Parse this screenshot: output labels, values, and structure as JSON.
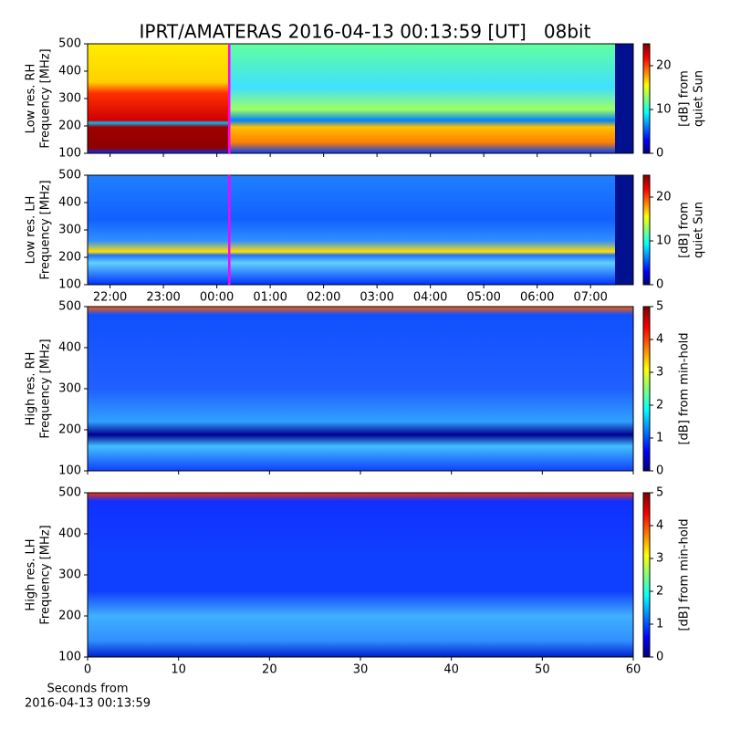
{
  "title": "IPRT/AMATERAS 2016-04-13 00:13:59 [UT]   08bit",
  "chart_data": [
    {
      "type": "heatmap",
      "ylabel": [
        "Low res. RH",
        "Frequency [MHz]"
      ],
      "ylim": [
        100,
        500
      ],
      "yticks": [
        100,
        200,
        300,
        400,
        500
      ],
      "xlim": [
        -2.42,
        7.8
      ],
      "xticks": [
        -2,
        -1,
        0,
        1,
        2,
        3,
        4,
        5,
        6,
        7
      ],
      "xticklabels": false,
      "marker_x": 0.233,
      "marker_color": "#ff00ff",
      "colorbar": {
        "label": [
          "[dB] from",
          "quiet Sun"
        ],
        "lim": [
          0,
          25
        ],
        "ticks": [
          0,
          10,
          20
        ]
      }
    },
    {
      "type": "heatmap",
      "ylabel": [
        "Low res. LH",
        "Frequency [MHz]"
      ],
      "ylim": [
        100,
        500
      ],
      "yticks": [
        100,
        200,
        300,
        400,
        500
      ],
      "xlim": [
        -2.42,
        7.8
      ],
      "xticks": [
        {
          "value": -2,
          "label": "22:00"
        },
        {
          "value": -1,
          "label": "23:00"
        },
        {
          "value": 0,
          "label": "00:00"
        },
        {
          "value": 1,
          "label": "01:00"
        },
        {
          "value": 2,
          "label": "02:00"
        },
        {
          "value": 3,
          "label": "03:00"
        },
        {
          "value": 4,
          "label": "04:00"
        },
        {
          "value": 5,
          "label": "05:00"
        },
        {
          "value": 6,
          "label": "06:00"
        },
        {
          "value": 7,
          "label": "07:00"
        }
      ],
      "xticklabels": true,
      "marker_x": 0.233,
      "marker_color": "#ff00ff",
      "colorbar": {
        "label": [
          "[dB] from",
          "quiet Sun"
        ],
        "lim": [
          0,
          25
        ],
        "ticks": [
          0,
          10,
          20
        ]
      }
    },
    {
      "type": "heatmap",
      "ylabel": [
        "High res. RH",
        "Frequency [MHz]"
      ],
      "ylim": [
        100,
        500
      ],
      "yticks": [
        100,
        200,
        300,
        400,
        500
      ],
      "xlim": [
        0,
        60
      ],
      "xticks": [
        0,
        10,
        20,
        30,
        40,
        50,
        60
      ],
      "xticklabels": false,
      "colorbar": {
        "label": [
          "[dB] from min-hold"
        ],
        "lim": [
          0,
          5
        ],
        "ticks": [
          0,
          1,
          2,
          3,
          4,
          5
        ]
      }
    },
    {
      "type": "heatmap",
      "ylabel": [
        "High res. LH",
        "Frequency [MHz]"
      ],
      "ylim": [
        100,
        500
      ],
      "yticks": [
        100,
        200,
        300,
        400,
        500
      ],
      "xlim": [
        0,
        60
      ],
      "xticks": [
        0,
        10,
        20,
        30,
        40,
        50,
        60
      ],
      "xticklabels": true,
      "xlabel": [
        "Seconds from",
        "2016-04-13 00:13:59"
      ],
      "colorbar": {
        "label": [
          "[dB] from min-hold"
        ],
        "lim": [
          0,
          5
        ],
        "ticks": [
          0,
          1,
          2,
          3,
          4,
          5
        ]
      }
    }
  ]
}
